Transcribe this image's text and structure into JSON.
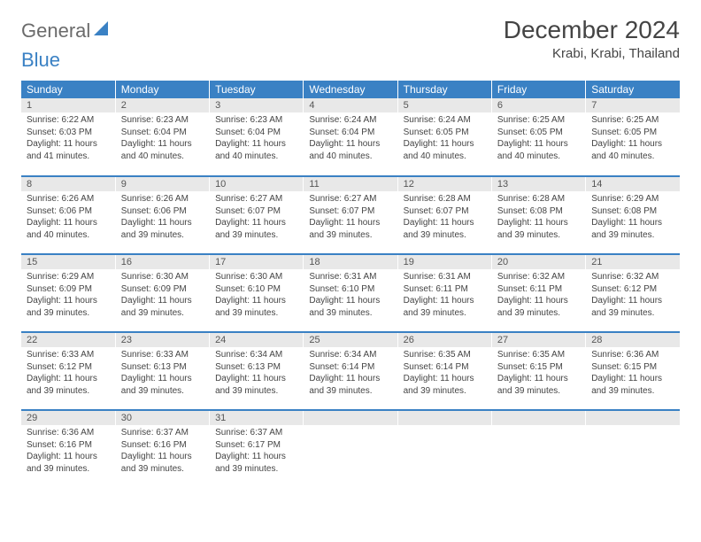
{
  "logo": {
    "word1": "General",
    "word2": "Blue"
  },
  "title": "December 2024",
  "location": "Krabi, Krabi, Thailand",
  "colors": {
    "accent": "#3a81c4",
    "header_text": "#ffffff",
    "daynum_bg": "#e8e8e8",
    "text": "#444444",
    "logo_gray": "#6b6b6b"
  },
  "weekdays": [
    "Sunday",
    "Monday",
    "Tuesday",
    "Wednesday",
    "Thursday",
    "Friday",
    "Saturday"
  ],
  "weeks": [
    [
      {
        "day": "1",
        "sunrise": "Sunrise: 6:22 AM",
        "sunset": "Sunset: 6:03 PM",
        "daylight": "Daylight: 11 hours and 41 minutes."
      },
      {
        "day": "2",
        "sunrise": "Sunrise: 6:23 AM",
        "sunset": "Sunset: 6:04 PM",
        "daylight": "Daylight: 11 hours and 40 minutes."
      },
      {
        "day": "3",
        "sunrise": "Sunrise: 6:23 AM",
        "sunset": "Sunset: 6:04 PM",
        "daylight": "Daylight: 11 hours and 40 minutes."
      },
      {
        "day": "4",
        "sunrise": "Sunrise: 6:24 AM",
        "sunset": "Sunset: 6:04 PM",
        "daylight": "Daylight: 11 hours and 40 minutes."
      },
      {
        "day": "5",
        "sunrise": "Sunrise: 6:24 AM",
        "sunset": "Sunset: 6:05 PM",
        "daylight": "Daylight: 11 hours and 40 minutes."
      },
      {
        "day": "6",
        "sunrise": "Sunrise: 6:25 AM",
        "sunset": "Sunset: 6:05 PM",
        "daylight": "Daylight: 11 hours and 40 minutes."
      },
      {
        "day": "7",
        "sunrise": "Sunrise: 6:25 AM",
        "sunset": "Sunset: 6:05 PM",
        "daylight": "Daylight: 11 hours and 40 minutes."
      }
    ],
    [
      {
        "day": "8",
        "sunrise": "Sunrise: 6:26 AM",
        "sunset": "Sunset: 6:06 PM",
        "daylight": "Daylight: 11 hours and 40 minutes."
      },
      {
        "day": "9",
        "sunrise": "Sunrise: 6:26 AM",
        "sunset": "Sunset: 6:06 PM",
        "daylight": "Daylight: 11 hours and 39 minutes."
      },
      {
        "day": "10",
        "sunrise": "Sunrise: 6:27 AM",
        "sunset": "Sunset: 6:07 PM",
        "daylight": "Daylight: 11 hours and 39 minutes."
      },
      {
        "day": "11",
        "sunrise": "Sunrise: 6:27 AM",
        "sunset": "Sunset: 6:07 PM",
        "daylight": "Daylight: 11 hours and 39 minutes."
      },
      {
        "day": "12",
        "sunrise": "Sunrise: 6:28 AM",
        "sunset": "Sunset: 6:07 PM",
        "daylight": "Daylight: 11 hours and 39 minutes."
      },
      {
        "day": "13",
        "sunrise": "Sunrise: 6:28 AM",
        "sunset": "Sunset: 6:08 PM",
        "daylight": "Daylight: 11 hours and 39 minutes."
      },
      {
        "day": "14",
        "sunrise": "Sunrise: 6:29 AM",
        "sunset": "Sunset: 6:08 PM",
        "daylight": "Daylight: 11 hours and 39 minutes."
      }
    ],
    [
      {
        "day": "15",
        "sunrise": "Sunrise: 6:29 AM",
        "sunset": "Sunset: 6:09 PM",
        "daylight": "Daylight: 11 hours and 39 minutes."
      },
      {
        "day": "16",
        "sunrise": "Sunrise: 6:30 AM",
        "sunset": "Sunset: 6:09 PM",
        "daylight": "Daylight: 11 hours and 39 minutes."
      },
      {
        "day": "17",
        "sunrise": "Sunrise: 6:30 AM",
        "sunset": "Sunset: 6:10 PM",
        "daylight": "Daylight: 11 hours and 39 minutes."
      },
      {
        "day": "18",
        "sunrise": "Sunrise: 6:31 AM",
        "sunset": "Sunset: 6:10 PM",
        "daylight": "Daylight: 11 hours and 39 minutes."
      },
      {
        "day": "19",
        "sunrise": "Sunrise: 6:31 AM",
        "sunset": "Sunset: 6:11 PM",
        "daylight": "Daylight: 11 hours and 39 minutes."
      },
      {
        "day": "20",
        "sunrise": "Sunrise: 6:32 AM",
        "sunset": "Sunset: 6:11 PM",
        "daylight": "Daylight: 11 hours and 39 minutes."
      },
      {
        "day": "21",
        "sunrise": "Sunrise: 6:32 AM",
        "sunset": "Sunset: 6:12 PM",
        "daylight": "Daylight: 11 hours and 39 minutes."
      }
    ],
    [
      {
        "day": "22",
        "sunrise": "Sunrise: 6:33 AM",
        "sunset": "Sunset: 6:12 PM",
        "daylight": "Daylight: 11 hours and 39 minutes."
      },
      {
        "day": "23",
        "sunrise": "Sunrise: 6:33 AM",
        "sunset": "Sunset: 6:13 PM",
        "daylight": "Daylight: 11 hours and 39 minutes."
      },
      {
        "day": "24",
        "sunrise": "Sunrise: 6:34 AM",
        "sunset": "Sunset: 6:13 PM",
        "daylight": "Daylight: 11 hours and 39 minutes."
      },
      {
        "day": "25",
        "sunrise": "Sunrise: 6:34 AM",
        "sunset": "Sunset: 6:14 PM",
        "daylight": "Daylight: 11 hours and 39 minutes."
      },
      {
        "day": "26",
        "sunrise": "Sunrise: 6:35 AM",
        "sunset": "Sunset: 6:14 PM",
        "daylight": "Daylight: 11 hours and 39 minutes."
      },
      {
        "day": "27",
        "sunrise": "Sunrise: 6:35 AM",
        "sunset": "Sunset: 6:15 PM",
        "daylight": "Daylight: 11 hours and 39 minutes."
      },
      {
        "day": "28",
        "sunrise": "Sunrise: 6:36 AM",
        "sunset": "Sunset: 6:15 PM",
        "daylight": "Daylight: 11 hours and 39 minutes."
      }
    ],
    [
      {
        "day": "29",
        "sunrise": "Sunrise: 6:36 AM",
        "sunset": "Sunset: 6:16 PM",
        "daylight": "Daylight: 11 hours and 39 minutes."
      },
      {
        "day": "30",
        "sunrise": "Sunrise: 6:37 AM",
        "sunset": "Sunset: 6:16 PM",
        "daylight": "Daylight: 11 hours and 39 minutes."
      },
      {
        "day": "31",
        "sunrise": "Sunrise: 6:37 AM",
        "sunset": "Sunset: 6:17 PM",
        "daylight": "Daylight: 11 hours and 39 minutes."
      },
      {
        "day": ""
      },
      {
        "day": ""
      },
      {
        "day": ""
      },
      {
        "day": ""
      }
    ]
  ]
}
